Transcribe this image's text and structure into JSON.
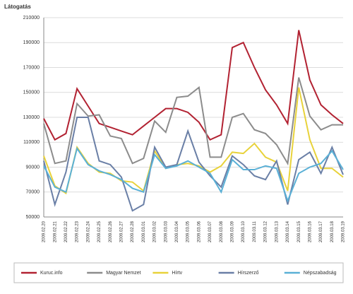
{
  "chart_data": {
    "type": "line",
    "y_label": "Látogatás",
    "categories": [
      "2009.02.20",
      "2009.02.21",
      "2009.02.22",
      "2009.02.23",
      "2009.02.24",
      "2009.02.25",
      "2009.02.26",
      "2009.02.27",
      "2009.02.28",
      "2009.03.01",
      "2009.03.02",
      "2009.03.03",
      "2009.03.04",
      "2009.03.05",
      "2009.03.06",
      "2009.03.07",
      "2009.03.08",
      "2009.03.09",
      "2009.03.10",
      "2009.03.11",
      "2009.03.12",
      "2009.03.13",
      "2009.03.14",
      "2009.03.15",
      "2009.03.16",
      "2009.03.17",
      "2009.03.18",
      "2009.03.19"
    ],
    "series": [
      {
        "name": "Kuruc.info",
        "color": "#b22232",
        "values": [
          129000,
          112000,
          117000,
          153000,
          139000,
          125000,
          122000,
          119000,
          116000,
          123000,
          130000,
          137000,
          137000,
          134000,
          126000,
          112000,
          116000,
          186000,
          190000,
          170000,
          152000,
          140000,
          125000,
          200000,
          160000,
          140000,
          132000,
          125000
        ]
      },
      {
        "name": "Magyar Nemzet",
        "color": "#8c8c8c",
        "values": [
          125000,
          93000,
          95000,
          141000,
          131000,
          132000,
          115000,
          113000,
          93000,
          97000,
          127000,
          118000,
          146000,
          147000,
          154000,
          98000,
          98000,
          130000,
          133000,
          120000,
          117000,
          108000,
          93000,
          162000,
          131000,
          120000,
          124000,
          124000
        ]
      },
      {
        "name": "Hírtv",
        "color": "#e8d23a",
        "values": [
          99000,
          75000,
          69000,
          106000,
          93000,
          86000,
          85000,
          79000,
          78000,
          71000,
          103000,
          89000,
          92000,
          93000,
          91000,
          86000,
          91000,
          102000,
          101000,
          109000,
          98000,
          94000,
          71000,
          154000,
          112000,
          89000,
          89000,
          82000
        ]
      },
      {
        "name": "Hírszerző",
        "color": "#6a7fa6",
        "values": [
          95000,
          60000,
          86000,
          130000,
          130000,
          95000,
          92000,
          82000,
          55000,
          60000,
          106000,
          90000,
          92000,
          119000,
          94000,
          83000,
          74000,
          99000,
          92000,
          83000,
          80000,
          95000,
          60000,
          96000,
          102000,
          85000,
          106000,
          84000
        ]
      },
      {
        "name": "Népszabadság",
        "color": "#5ab0d6",
        "values": [
          91000,
          74000,
          70000,
          105000,
          92000,
          87000,
          84000,
          80000,
          73000,
          70000,
          100000,
          89000,
          91000,
          95000,
          90000,
          85000,
          70000,
          96000,
          88000,
          88000,
          91000,
          89000,
          63000,
          85000,
          90000,
          93000,
          103000,
          88000
        ]
      }
    ],
    "ylim": [
      50000,
      210000
    ],
    "yticks": [
      50000,
      70000,
      90000,
      110000,
      130000,
      150000,
      170000,
      190000,
      210000
    ],
    "grid": true,
    "legend": "bottom"
  }
}
